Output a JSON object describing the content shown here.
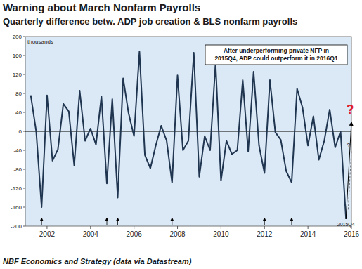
{
  "chart_data": {
    "type": "line",
    "title": "Warning about March Nonfarm Payrolls",
    "subtitle": "Quarterly difference betw. ADP job creation & BLS nonfarm payrolls",
    "y_label": "thousands",
    "source": "NBF Economics and Strategy (data via Datastream)",
    "annotation": [
      "After underperforming private NFP in",
      "2015Q4, ADP could outperform it in 2016Q1"
    ],
    "point_label": "2015Q4",
    "color": "#1f3550",
    "grid": false,
    "x": [
      2001.25,
      2001.5,
      2001.75,
      2002,
      2002.25,
      2002.5,
      2002.75,
      2003,
      2003.25,
      2003.5,
      2003.75,
      2004,
      2004.25,
      2004.5,
      2004.75,
      2005,
      2005.25,
      2005.5,
      2005.75,
      2006,
      2006.25,
      2006.5,
      2006.75,
      2007,
      2007.25,
      2007.5,
      2007.75,
      2008,
      2008.25,
      2008.5,
      2008.75,
      2009,
      2009.25,
      2009.5,
      2009.75,
      2010,
      2010.25,
      2010.5,
      2010.75,
      2011,
      2011.25,
      2011.5,
      2011.75,
      2012,
      2012.25,
      2012.5,
      2012.75,
      2013,
      2013.25,
      2013.5,
      2013.75,
      2014,
      2014.25,
      2014.5,
      2014.75,
      2015,
      2015.25,
      2015.5,
      2015.75
    ],
    "values": [
      76,
      0,
      -160,
      76,
      -62,
      -38,
      58,
      42,
      -72,
      86,
      -20,
      6,
      -28,
      74,
      -110,
      68,
      -140,
      112,
      38,
      -10,
      168,
      -50,
      -78,
      -30,
      12,
      -20,
      -108,
      118,
      -40,
      -20,
      166,
      -96,
      -10,
      -40,
      144,
      -104,
      -20,
      -48,
      -40,
      108,
      -42,
      126,
      -30,
      -88,
      108,
      -2,
      -18,
      -84,
      -108,
      90,
      50,
      -30,
      32,
      -60,
      -20,
      46,
      -34,
      0,
      -185
    ],
    "xlim": [
      2001,
      2016
    ],
    "xticks": [
      2002,
      2004,
      2006,
      2008,
      2010,
      2012,
      2014,
      2016
    ],
    "ylim": [
      -200,
      200
    ],
    "yticks": [
      -200,
      -160,
      -120,
      -80,
      -40,
      0,
      40,
      80,
      120,
      160,
      200
    ],
    "arrows": [
      2001.75,
      2004.75,
      2005.25,
      2007.75,
      2012,
      2013.25
    ],
    "projection": {
      "x": [
        2015.75,
        2016
      ],
      "values": [
        -185,
        20
      ],
      "label": "?",
      "color": "#e0202a"
    },
    "dashed_projection": {
      "x": [
        2015.85,
        2016
      ],
      "values": [
        -165,
        -40
      ],
      "label": "?"
    }
  }
}
